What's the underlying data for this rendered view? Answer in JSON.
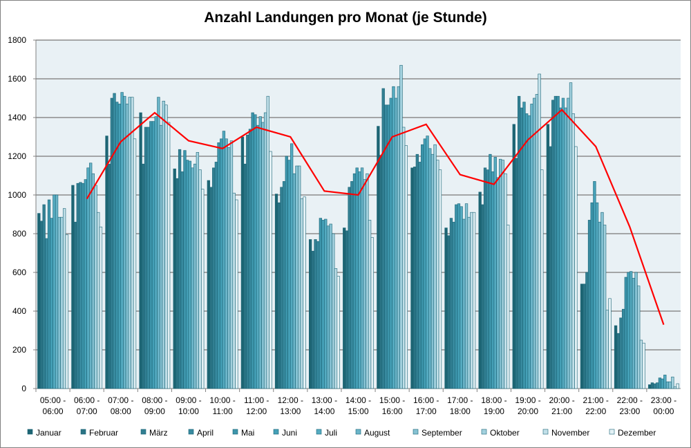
{
  "chart_data": {
    "type": "bar",
    "title": "Anzahl Landungen pro Monat (je Stunde)",
    "xlabel": "",
    "ylabel": "",
    "ylim": [
      0,
      1800
    ],
    "yticks": [
      0,
      200,
      400,
      600,
      800,
      1000,
      1200,
      1400,
      1600,
      1800
    ],
    "grid": true,
    "legend_position": "bottom",
    "categories": [
      [
        "05:00 -",
        "06:00"
      ],
      [
        "06:00 -",
        "07:00"
      ],
      [
        "07:00 -",
        "08:00"
      ],
      [
        "08:00 -",
        "09:00"
      ],
      [
        "09:00 -",
        "10:00"
      ],
      [
        "10:00 -",
        "11:00"
      ],
      [
        "11:00 -",
        "12:00"
      ],
      [
        "12:00 -",
        "13:00"
      ],
      [
        "13:00 -",
        "14:00"
      ],
      [
        "14:00 -",
        "15:00"
      ],
      [
        "15:00 -",
        "16:00"
      ],
      [
        "16:00 -",
        "17:00"
      ],
      [
        "17:00 -",
        "18:00"
      ],
      [
        "18:00 -",
        "19:00"
      ],
      [
        "19:00 -",
        "20:00"
      ],
      [
        "20:00 -",
        "21:00"
      ],
      [
        "21:00 -",
        "22:00"
      ],
      [
        "22:00 -",
        "23:00"
      ],
      [
        "23:00 -",
        "00:00"
      ]
    ],
    "series": [
      {
        "name": "Januar",
        "color": "#1d6573",
        "values": [
          905,
          1050,
          1305,
          1425,
          1135,
          1075,
          1300,
          1005,
          770,
          830,
          1355,
          1140,
          830,
          1015,
          1365,
          1365,
          540,
          325,
          20
        ]
      },
      {
        "name": "Februar",
        "color": "#2a7384",
        "values": [
          865,
          860,
          1160,
          1160,
          1085,
          1040,
          1160,
          960,
          710,
          815,
          1205,
          1145,
          790,
          950,
          1190,
          1250,
          540,
          285,
          30
        ]
      },
      {
        "name": "März",
        "color": "#327f92",
        "values": [
          950,
          1060,
          1500,
          1350,
          1235,
          1140,
          1310,
          1040,
          770,
          1040,
          1550,
          1210,
          880,
          1140,
          1510,
          1490,
          600,
          365,
          25
        ]
      },
      {
        "name": "April",
        "color": "#388a9f",
        "values": [
          775,
          1065,
          1525,
          1350,
          1120,
          1170,
          1340,
          1070,
          760,
          1070,
          1465,
          1170,
          860,
          1130,
          1450,
          1510,
          870,
          410,
          30
        ]
      },
      {
        "name": "Mai",
        "color": "#3d95ab",
        "values": [
          975,
          1060,
          1480,
          1380,
          1230,
          1270,
          1425,
          1200,
          880,
          1110,
          1465,
          1260,
          950,
          1210,
          1480,
          1510,
          960,
          575,
          55
        ]
      },
      {
        "name": "Juni",
        "color": "#45a0b7",
        "values": [
          880,
          1080,
          1470,
          1380,
          1180,
          1290,
          1415,
          1180,
          870,
          1140,
          1500,
          1290,
          955,
          1120,
          1420,
          1450,
          1070,
          600,
          50
        ]
      },
      {
        "name": "Juli",
        "color": "#55abc1",
        "values": [
          1000,
          1140,
          1530,
          1405,
          1175,
          1330,
          1360,
          1265,
          875,
          1120,
          1560,
          1305,
          940,
          1195,
          1410,
          1500,
          960,
          605,
          70
        ]
      },
      {
        "name": "August",
        "color": "#6bb5c9",
        "values": [
          1000,
          1165,
          1510,
          1505,
          1140,
          1290,
          1405,
          1110,
          840,
          1140,
          1500,
          1240,
          875,
          1090,
          1470,
          1450,
          860,
          570,
          35
        ]
      },
      {
        "name": "September",
        "color": "#86c2d3",
        "values": [
          885,
          1110,
          1470,
          1360,
          1160,
          1245,
          1375,
          1150,
          850,
          1080,
          1560,
          1210,
          955,
          1185,
          1500,
          1500,
          910,
          600,
          35
        ]
      },
      {
        "name": "Oktober",
        "color": "#a3d1de",
        "values": [
          885,
          1050,
          1505,
          1485,
          1220,
          1280,
          1425,
          1150,
          800,
          1110,
          1670,
          1260,
          885,
          1180,
          1520,
          1580,
          845,
          530,
          60
        ]
      },
      {
        "name": "November",
        "color": "#c2e0e9",
        "values": [
          930,
          910,
          1505,
          1465,
          1130,
          1010,
          1510,
          980,
          620,
          870,
          1350,
          1180,
          910,
          1110,
          1625,
          1420,
          405,
          250,
          10
        ]
      },
      {
        "name": "Dezember",
        "color": "#e3f1f5",
        "values": [
          795,
          835,
          1290,
          1375,
          1030,
          975,
          1225,
          990,
          580,
          780,
          1255,
          1130,
          910,
          845,
          1130,
          1250,
          465,
          235,
          25
        ]
      }
    ],
    "line_series": {
      "color": "#ff0000",
      "values": [
        null,
        980,
        1275,
        1425,
        1280,
        1240,
        1350,
        1300,
        1020,
        1000,
        1300,
        1365,
        1105,
        1055,
        1285,
        1440,
        1250,
        835,
        330
      ]
    },
    "plot_background": "#e9f1f5"
  }
}
